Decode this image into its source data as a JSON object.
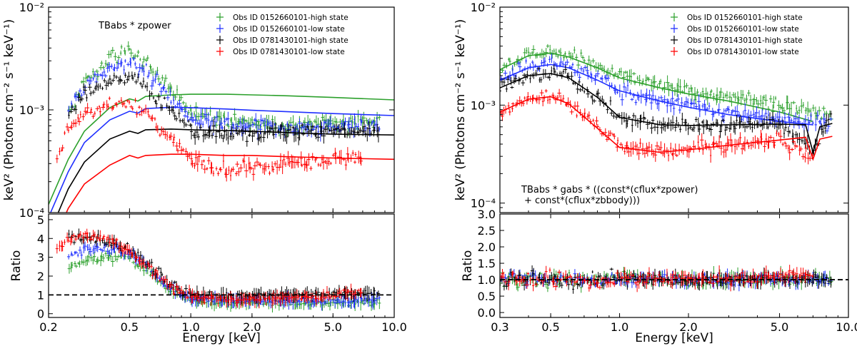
{
  "chart_data": [
    {
      "type": "scatter",
      "panel": "left",
      "annotation": [
        "TBabs * zpower"
      ],
      "ylabel": "keV² (Photons cm⁻² s⁻¹ keV⁻¹)",
      "ratio_ylabel": "Ratio",
      "xlabel": "Energy [keV]",
      "xscale": "log",
      "xlim": [
        0.2,
        10.0
      ],
      "yscale": "log",
      "ylim": [
        0.0001,
        0.01
      ],
      "ratio_ylim": [
        -0.2,
        5.3
      ],
      "xticks": [
        "0.2",
        "0.5",
        "1.0",
        "2.0",
        "5.0",
        "10.0"
      ],
      "xtick_values": [
        0.2,
        0.5,
        1.0,
        2.0,
        5.0,
        10.0
      ],
      "yticks": [
        "10⁻⁴",
        "10⁻³",
        "10⁻²"
      ],
      "ytick_values": [
        0.0001,
        0.001,
        0.01
      ],
      "ratio_yticks": [
        "0",
        "1",
        "2",
        "3",
        "4",
        "5"
      ],
      "ratio_ytick_values": [
        0,
        1,
        2,
        3,
        4,
        5
      ],
      "legend_position": "top-right",
      "series": [
        {
          "name": "Obs ID 0152660101-high state",
          "color": "#2ca02c",
          "data_x": [
            0.25,
            0.3,
            0.4,
            0.5,
            0.6,
            0.8,
            1.0,
            1.5,
            2.0,
            3.0,
            5.0,
            8.5
          ],
          "data_y": [
            0.0009,
            0.0019,
            0.0032,
            0.0037,
            0.003,
            0.0016,
            0.00095,
            0.0008,
            0.00075,
            0.00072,
            0.00075,
            0.0008
          ],
          "model_x": [
            0.2,
            0.25,
            0.3,
            0.4,
            0.5,
            0.55,
            0.6,
            0.8,
            1.0,
            1.5,
            2.0,
            3.0,
            5.0,
            10.0
          ],
          "model_y": [
            0.00012,
            0.00033,
            0.00062,
            0.00105,
            0.00128,
            0.00122,
            0.00135,
            0.0014,
            0.00142,
            0.00142,
            0.0014,
            0.00137,
            0.00132,
            0.00125
          ],
          "ratio_y": [
            2.3,
            2.8,
            3.0,
            3.0,
            2.3,
            1.2,
            0.7,
            0.58,
            0.55,
            0.55,
            0.57,
            0.6
          ]
        },
        {
          "name": "Obs ID 0152660101-low state",
          "color": "#1f2fff",
          "data_x": [
            0.25,
            0.3,
            0.4,
            0.5,
            0.6,
            0.8,
            1.0,
            1.5,
            2.0,
            3.0,
            5.0,
            8.5
          ],
          "data_y": [
            0.001,
            0.0017,
            0.0026,
            0.0029,
            0.0024,
            0.0013,
            0.0008,
            0.0007,
            0.00068,
            0.00066,
            0.00068,
            0.0007
          ],
          "model_x": [
            0.2,
            0.25,
            0.3,
            0.4,
            0.5,
            0.55,
            0.6,
            0.8,
            1.0,
            1.5,
            2.0,
            3.0,
            5.0,
            10.0
          ],
          "model_y": [
            9e-05,
            0.00025,
            0.00048,
            0.0008,
            0.00097,
            0.00093,
            0.00103,
            0.00106,
            0.00105,
            0.00102,
            0.00099,
            0.00096,
            0.00092,
            0.00088
          ],
          "ratio_y": [
            3.0,
            3.4,
            3.5,
            3.2,
            2.6,
            1.3,
            0.8,
            0.7,
            0.7,
            0.7,
            0.72,
            0.74
          ]
        },
        {
          "name": "Obs ID 0781430101-high state",
          "color": "#000000",
          "data_x": [
            0.25,
            0.3,
            0.4,
            0.5,
            0.6,
            0.8,
            1.0,
            1.5,
            2.0,
            3.0,
            5.0,
            8.5
          ],
          "data_y": [
            0.00085,
            0.0014,
            0.0019,
            0.0021,
            0.0017,
            0.00095,
            0.00065,
            0.00058,
            0.0006,
            0.00062,
            0.00063,
            0.00064
          ],
          "model_x": [
            0.2,
            0.25,
            0.3,
            0.4,
            0.5,
            0.55,
            0.6,
            0.8,
            1.0,
            1.5,
            2.0,
            3.0,
            5.0,
            10.0
          ],
          "model_y": [
            6e-05,
            0.00017,
            0.00031,
            0.00052,
            0.00062,
            0.00059,
            0.00064,
            0.00065,
            0.00064,
            0.00063,
            0.00062,
            0.0006,
            0.00058,
            0.00057
          ],
          "ratio_y": [
            4.0,
            4.1,
            3.8,
            3.4,
            2.8,
            1.5,
            1.0,
            0.95,
            0.98,
            1.02,
            1.05,
            1.1
          ]
        },
        {
          "name": "Obs ID 0781430101-low state",
          "color": "#ff0000",
          "data_x": [
            0.22,
            0.25,
            0.3,
            0.4,
            0.5,
            0.6,
            0.8,
            1.0,
            1.5,
            2.0,
            3.0,
            5.0,
            7.0
          ],
          "data_y": [
            0.00035,
            0.00065,
            0.0009,
            0.0011,
            0.00118,
            0.0009,
            0.0005,
            0.00033,
            0.00026,
            0.00027,
            0.0003,
            0.00033,
            0.00036
          ],
          "model_x": [
            0.2,
            0.25,
            0.3,
            0.4,
            0.5,
            0.55,
            0.6,
            0.8,
            1.0,
            1.5,
            2.0,
            3.0,
            5.0,
            10.0
          ],
          "model_y": [
            4e-05,
            0.00011,
            0.00019,
            0.00029,
            0.00036,
            0.00034,
            0.00036,
            0.00037,
            0.00037,
            0.00036,
            0.00036,
            0.00035,
            0.00034,
            0.00033
          ],
          "ratio_y": [
            3.3,
            4.0,
            4.2,
            3.9,
            3.4,
            2.6,
            1.4,
            0.92,
            0.75,
            0.75,
            0.85,
            0.97,
            1.2
          ]
        }
      ],
      "reference_line": 1.0
    },
    {
      "type": "scatter",
      "panel": "right",
      "annotation": [
        "TBabs * gabs * ((const*(cflux*zpower)",
        "+ const*(cflux*zbbody)))"
      ],
      "ylabel": "keV² (Photons cm⁻² s⁻¹ keV⁻¹)",
      "ratio_ylabel": "Ratio",
      "xlabel": "Energy [keV]",
      "xscale": "log",
      "xlim": [
        0.3,
        10.0
      ],
      "yscale": "log",
      "ylim": [
        8e-05,
        0.01
      ],
      "ratio_ylim": [
        -0.15,
        3.0
      ],
      "xticks": [
        "0.3",
        "0.5",
        "1.0",
        "2.0",
        "5.0",
        "10.0"
      ],
      "xtick_values": [
        0.3,
        0.5,
        1.0,
        2.0,
        5.0,
        10.0
      ],
      "yticks": [
        "10⁻⁴",
        "10⁻³",
        "10⁻²"
      ],
      "ytick_values": [
        0.0001,
        0.001,
        0.01
      ],
      "ratio_yticks": [
        "0.0",
        "0.5",
        "1.0",
        "1.5",
        "2.0",
        "2.5",
        "3.0"
      ],
      "ratio_ytick_values": [
        0.0,
        0.5,
        1.0,
        1.5,
        2.0,
        2.5,
        3.0
      ],
      "legend_position": "top-right",
      "series": [
        {
          "name": "Obs ID 0152660101-high state",
          "color": "#2ca02c",
          "data_x": [
            0.3,
            0.4,
            0.5,
            0.6,
            0.8,
            1.0,
            1.5,
            2.0,
            3.0,
            5.0,
            8.5
          ],
          "data_y": [
            0.0024,
            0.0033,
            0.0036,
            0.0033,
            0.0025,
            0.002,
            0.0016,
            0.0014,
            0.0012,
            0.001,
            0.0008
          ],
          "model_x": [
            0.3,
            0.4,
            0.5,
            0.6,
            0.8,
            1.0,
            1.5,
            2.0,
            3.0,
            5.0,
            7.0
          ],
          "model_y": [
            0.0023,
            0.0032,
            0.0034,
            0.0031,
            0.0024,
            0.0019,
            0.0015,
            0.0013,
            0.0011,
            0.00085,
            0.00068
          ],
          "ratio_y": [
            1.05,
            1.0,
            1.02,
            1.0,
            0.98,
            1.03,
            1.0,
            0.97,
            1.02,
            1.0,
            1.05
          ]
        },
        {
          "name": "Obs ID 0152660101-low state",
          "color": "#1f2fff",
          "data_x": [
            0.3,
            0.4,
            0.5,
            0.6,
            0.8,
            1.0,
            1.5,
            2.0,
            3.0,
            5.0,
            8.5
          ],
          "data_y": [
            0.0019,
            0.0025,
            0.0027,
            0.0025,
            0.0019,
            0.0014,
            0.0011,
            0.001,
            0.00085,
            0.00072,
            0.00065
          ],
          "model_x": [
            0.3,
            0.4,
            0.5,
            0.6,
            0.8,
            1.0,
            1.5,
            2.0,
            3.0,
            5.0,
            7.0
          ],
          "model_y": [
            0.0018,
            0.0024,
            0.0026,
            0.0024,
            0.0018,
            0.0014,
            0.0011,
            0.00095,
            0.0008,
            0.00068,
            0.00063
          ],
          "ratio_y": [
            1.02,
            1.05,
            1.0,
            1.03,
            0.98,
            1.0,
            1.02,
            0.98,
            1.0,
            1.03,
            1.0
          ]
        },
        {
          "name": "Obs ID 0781430101-high state",
          "color": "#000000",
          "data_x": [
            0.3,
            0.4,
            0.5,
            0.6,
            0.8,
            1.0,
            1.5,
            2.0,
            3.0,
            5.0,
            7.0,
            8.5
          ],
          "data_y": [
            0.0015,
            0.002,
            0.0021,
            0.0019,
            0.0012,
            0.00075,
            0.00063,
            0.00062,
            0.00063,
            0.00064,
            0.00035,
            0.0009
          ],
          "model_x": [
            0.3,
            0.4,
            0.5,
            0.6,
            0.8,
            1.0,
            1.5,
            2.0,
            3.0,
            5.0,
            6.5,
            7.0,
            7.5,
            8.5
          ],
          "model_y": [
            0.0015,
            0.002,
            0.0021,
            0.0019,
            0.0012,
            0.00075,
            0.00063,
            0.00062,
            0.00063,
            0.00064,
            0.00063,
            0.00033,
            0.0006,
            0.00065
          ],
          "ratio_y": [
            1.02,
            1.0,
            1.01,
            0.98,
            1.0,
            1.02,
            0.99,
            1.0,
            1.0,
            1.02,
            0.98,
            1.0
          ]
        },
        {
          "name": "Obs ID 0781430101-low state",
          "color": "#ff0000",
          "data_x": [
            0.3,
            0.4,
            0.5,
            0.6,
            0.8,
            1.0,
            1.5,
            2.0,
            3.0,
            5.0,
            7.0
          ],
          "data_y": [
            0.00085,
            0.00115,
            0.00125,
            0.00105,
            0.0006,
            0.00038,
            0.00033,
            0.00035,
            0.0004,
            0.00045,
            0.00028
          ],
          "model_x": [
            0.3,
            0.4,
            0.5,
            0.6,
            0.8,
            1.0,
            1.5,
            2.0,
            3.0,
            5.0,
            6.5,
            7.0,
            7.5,
            8.5
          ],
          "model_y": [
            0.00085,
            0.00115,
            0.00122,
            0.00103,
            0.00058,
            0.00037,
            0.00033,
            0.00035,
            0.00039,
            0.00044,
            0.00047,
            0.00028,
            0.00045,
            0.00048
          ],
          "ratio_y": [
            1.05,
            1.0,
            1.03,
            1.0,
            0.98,
            1.0,
            1.05,
            1.02,
            1.0,
            1.1,
            1.15
          ]
        }
      ],
      "reference_line": 1.0
    }
  ]
}
